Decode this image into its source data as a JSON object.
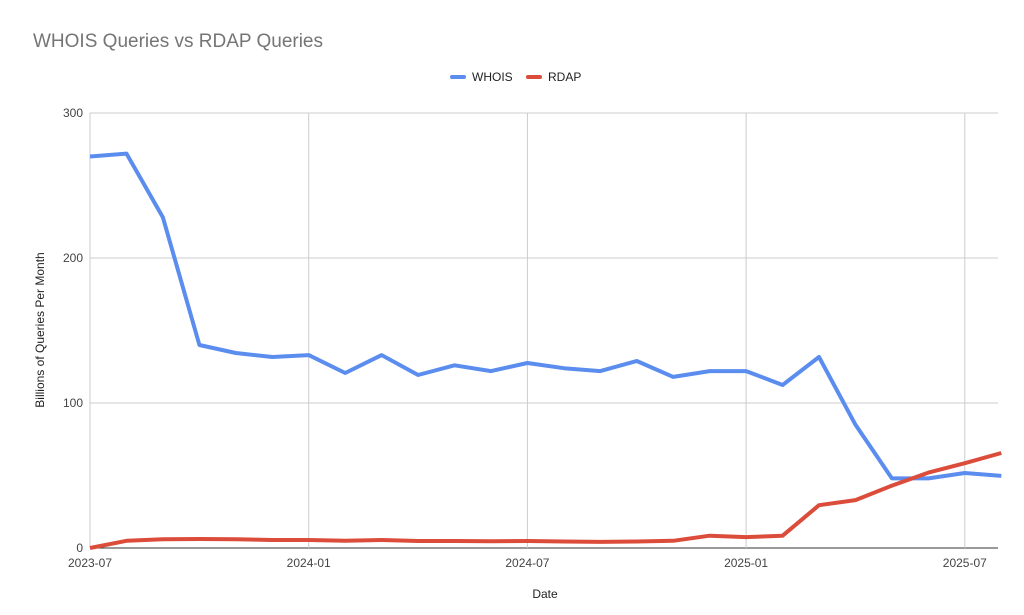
{
  "chart_data": {
    "type": "line",
    "title": "WHOIS Queries vs RDAP Queries",
    "xlabel": "Date",
    "ylabel": "Billions of Queries Per Month",
    "ylim": [
      0,
      300
    ],
    "yticks": [
      "0",
      "100",
      "200",
      "300"
    ],
    "xticks": [
      "2023-07",
      "2024-01",
      "2024-07",
      "2025-01",
      "2025-07"
    ],
    "grid": true,
    "legend": "top-center",
    "x": [
      "2023-07",
      "2023-08",
      "2023-09",
      "2023-10",
      "2023-11",
      "2023-12",
      "2024-01",
      "2024-02",
      "2024-03",
      "2024-04",
      "2024-05",
      "2024-06",
      "2024-07",
      "2024-08",
      "2024-09",
      "2024-10",
      "2024-11",
      "2024-12",
      "2025-01",
      "2025-02",
      "2025-03",
      "2025-04",
      "2025-05",
      "2025-06",
      "2025-07",
      "2025-08"
    ],
    "series": [
      {
        "name": "WHOIS",
        "color": "#5b8def",
        "values": [
          270,
          272,
          228,
          140,
          134.5,
          131.7,
          133,
          120.7,
          133,
          119.3,
          126,
          122,
          127.6,
          124,
          122,
          129,
          118,
          122,
          122,
          112.4,
          131.7,
          85,
          48,
          48,
          51.7,
          49.7
        ]
      },
      {
        "name": "RDAP",
        "color": "#db4d3a",
        "values": [
          0,
          5,
          6,
          6.2,
          6,
          5.5,
          5.5,
          5,
          5.5,
          4.8,
          4.8,
          4.6,
          4.8,
          4.5,
          4.2,
          4.5,
          5,
          8.5,
          7.5,
          8.5,
          29.5,
          33,
          43,
          52,
          58.5,
          65.5
        ]
      }
    ]
  }
}
